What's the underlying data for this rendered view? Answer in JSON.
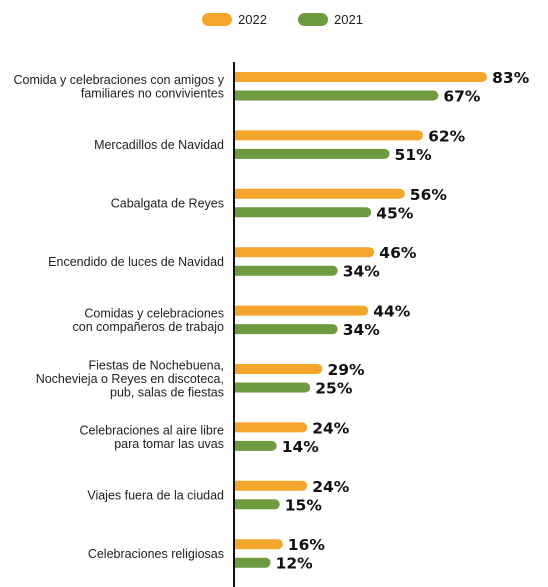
{
  "chart_data": {
    "type": "bar",
    "orientation": "horizontal",
    "categories": [
      [
        "Comida y celebraciones con amigos y",
        "familiares no convivientes"
      ],
      [
        "Mercadillos de Navidad"
      ],
      [
        "Cabalgata de Reyes"
      ],
      [
        "Encendido de luces de Navidad"
      ],
      [
        "Comidas y celebraciones",
        "con compañeros de trabajo"
      ],
      [
        "Fiestas de Nochebuena,",
        "Nochevieja o Reyes en discoteca,",
        "pub, salas de fiestas"
      ],
      [
        "Celebraciones al aire libre",
        "para tomar las uvas"
      ],
      [
        "Viajes fuera de la ciudad"
      ],
      [
        "Celebraciones religiosas"
      ]
    ],
    "series": [
      {
        "name": "2022",
        "color": "#F4A52C",
        "values": [
          83,
          62,
          56,
          46,
          44,
          29,
          24,
          24,
          16
        ],
        "labels": [
          "83%",
          "62%",
          "56%",
          "46%",
          "44%",
          "29%",
          "24%",
          "24%",
          "16%"
        ]
      },
      {
        "name": "2021",
        "color": "#6E9B3F",
        "values": [
          67,
          51,
          45,
          34,
          34,
          25,
          14,
          15,
          12
        ],
        "labels": [
          "67%",
          "51%",
          "45%",
          "34%",
          "34%",
          "25%",
          "14%",
          "15%",
          "12%"
        ]
      }
    ],
    "xlim": [
      0,
      100
    ],
    "legend_position": "top-center",
    "grid": false,
    "axis_color": "#111111"
  }
}
